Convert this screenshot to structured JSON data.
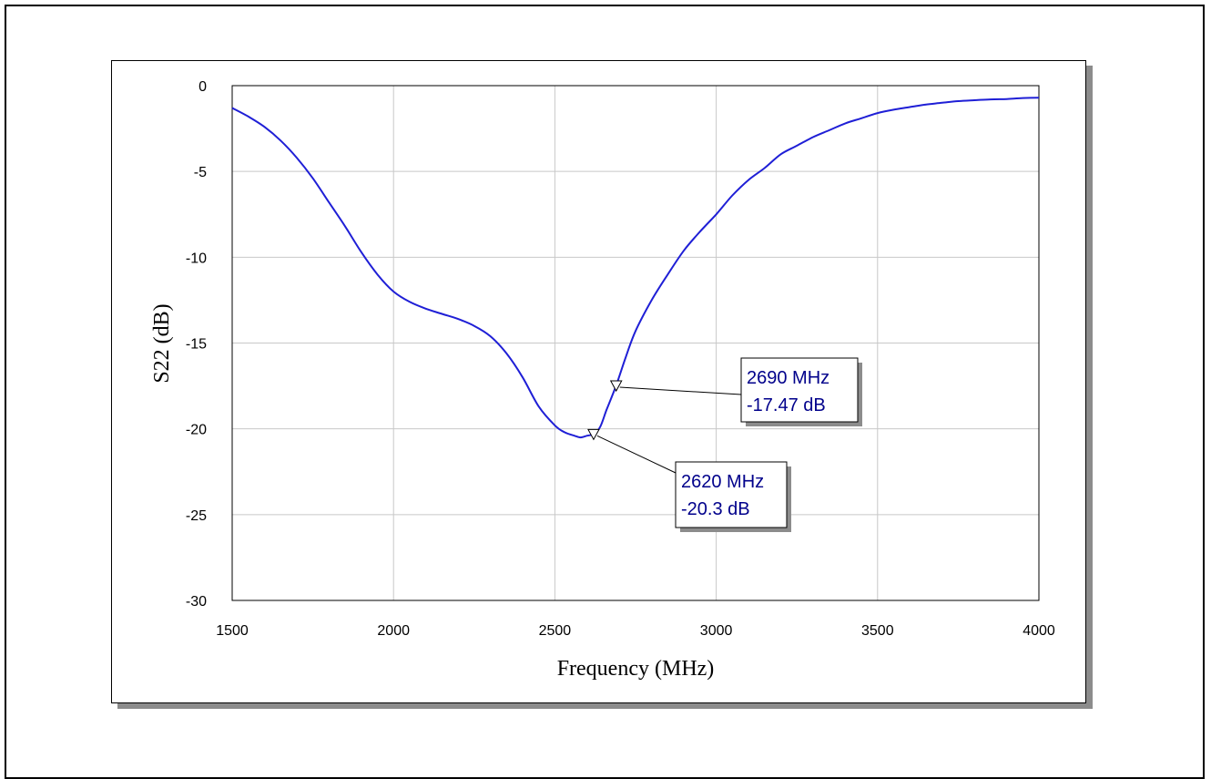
{
  "chart_data": {
    "type": "line",
    "xlabel": "Frequency (MHz)",
    "ylabel": "S22 (dB)",
    "xlim": [
      1500,
      4000
    ],
    "ylim": [
      -30,
      0
    ],
    "xticks": [
      1500,
      2000,
      2500,
      3000,
      3500,
      4000
    ],
    "yticks": [
      0,
      -5,
      -10,
      -15,
      -20,
      -25,
      -30
    ],
    "grid": true,
    "series": [
      {
        "color": "#1f1fd6",
        "x": [
          1500,
          1550,
          1600,
          1650,
          1700,
          1750,
          1800,
          1850,
          1900,
          1950,
          2000,
          2050,
          2100,
          2150,
          2200,
          2250,
          2300,
          2350,
          2400,
          2450,
          2500,
          2530,
          2560,
          2580,
          2600,
          2620,
          2640,
          2660,
          2690,
          2720,
          2750,
          2800,
          2850,
          2900,
          2950,
          3000,
          3050,
          3100,
          3150,
          3200,
          3250,
          3300,
          3350,
          3400,
          3450,
          3500,
          3550,
          3600,
          3650,
          3700,
          3750,
          3800,
          3850,
          3900,
          3950,
          4000
        ],
        "y": [
          -1.3,
          -1.8,
          -2.4,
          -3.2,
          -4.2,
          -5.4,
          -6.8,
          -8.2,
          -9.7,
          -11.0,
          -12.0,
          -12.6,
          -13.0,
          -13.3,
          -13.6,
          -14.0,
          -14.6,
          -15.6,
          -17.0,
          -18.7,
          -19.8,
          -20.2,
          -20.4,
          -20.5,
          -20.4,
          -20.3,
          -19.9,
          -18.9,
          -17.47,
          -15.8,
          -14.3,
          -12.5,
          -11.0,
          -9.6,
          -8.5,
          -7.5,
          -6.4,
          -5.5,
          -4.8,
          -4.0,
          -3.5,
          -3.0,
          -2.6,
          -2.2,
          -1.9,
          -1.6,
          -1.4,
          -1.25,
          -1.1,
          -1.0,
          -0.9,
          -0.85,
          -0.8,
          -0.78,
          -0.72,
          -0.7
        ]
      }
    ],
    "markers": [
      {
        "x": 2690,
        "y": -17.47,
        "label_freq": "2690 MHz",
        "label_db": "-17.47 dB"
      },
      {
        "x": 2620,
        "y": -20.3,
        "label_freq": "2620 MHz",
        "label_db": "-20.3 dB"
      }
    ]
  }
}
